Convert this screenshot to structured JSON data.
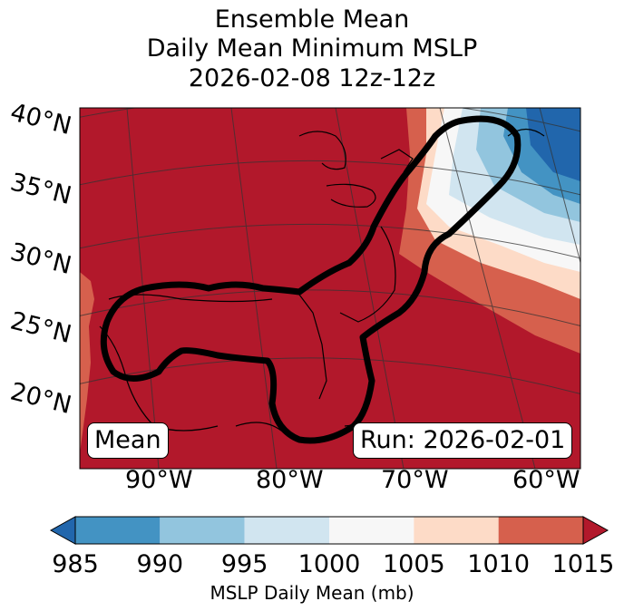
{
  "title": {
    "line1": "Ensemble Mean",
    "line2": "Daily Mean Minimum MSLP",
    "line3": "2026-02-08 12z-12z"
  },
  "map": {
    "lat_labels": [
      "40°N",
      "35°N",
      "30°N",
      "25°N",
      "20°N"
    ],
    "lon_labels": [
      "90°W",
      "80°W",
      "70°W",
      "60°W"
    ],
    "mean_label": "Mean",
    "run_label": "Run: 2026-02-01",
    "dominant_fill_color": "#b2182b"
  },
  "colorbar": {
    "ticks": [
      "985",
      "990",
      "995",
      "1000",
      "1005",
      "1010",
      "1015"
    ],
    "colors": [
      "#2166ac",
      "#4393c3",
      "#92c5de",
      "#d1e5f0",
      "#f7f7f7",
      "#fddbc7",
      "#d6604d",
      "#b2182b"
    ],
    "label": "MSLP Daily Mean (mb)"
  }
}
